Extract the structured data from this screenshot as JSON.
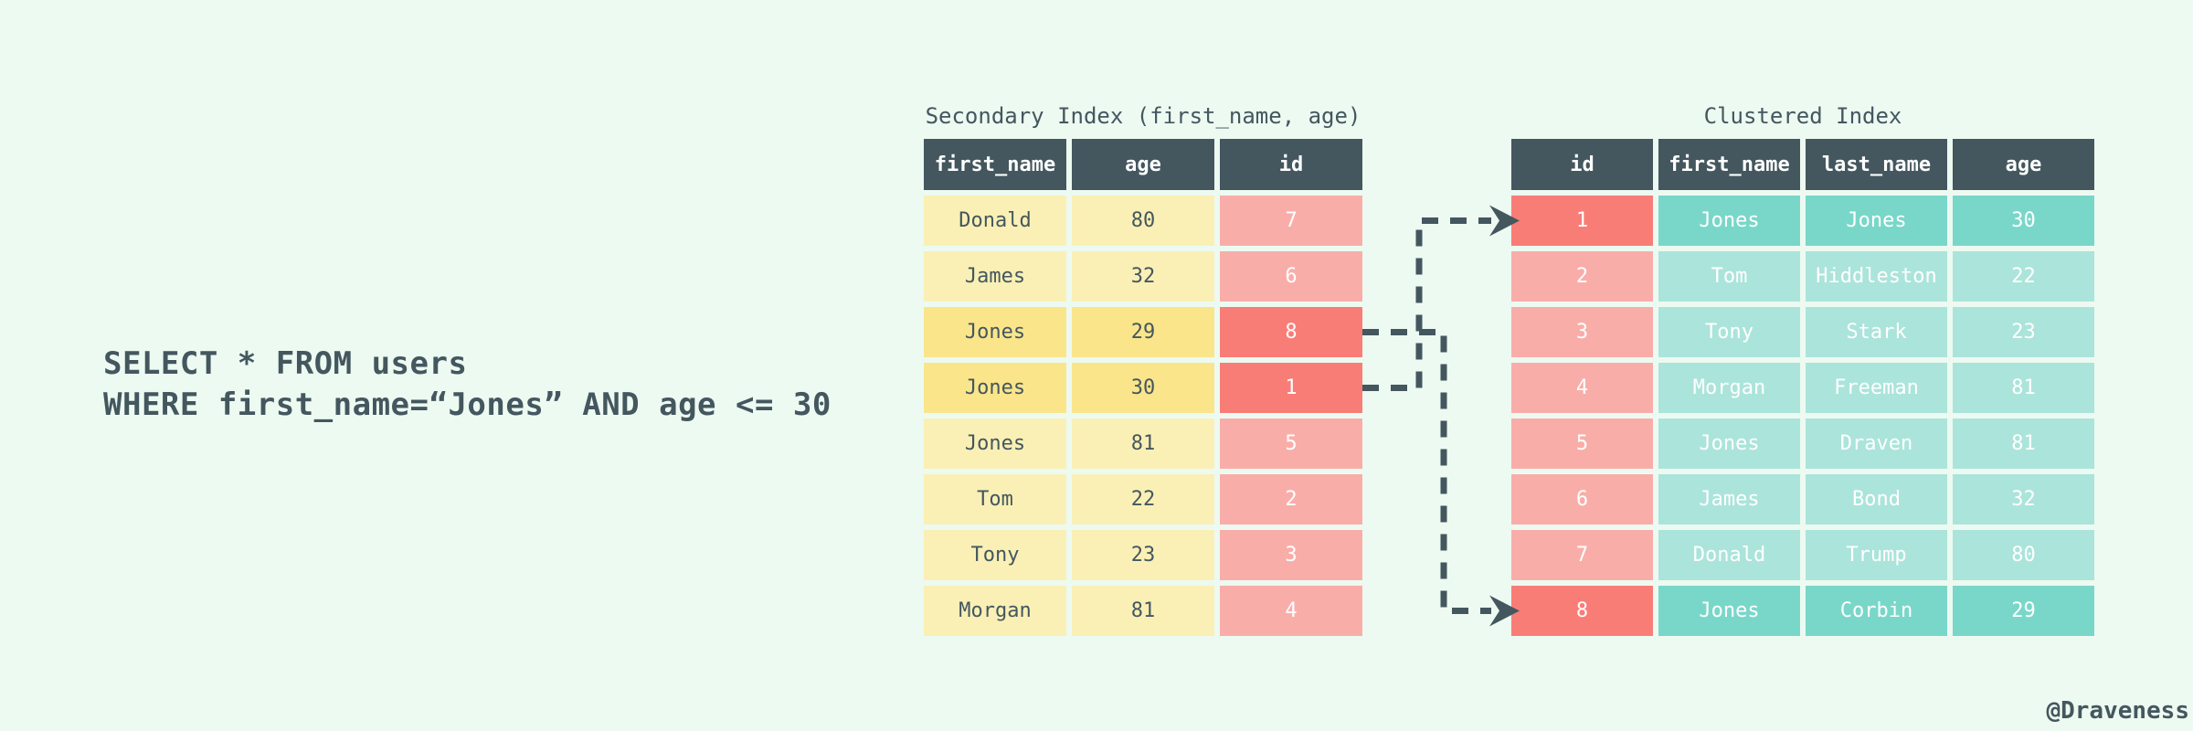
{
  "sql": {
    "line1": "SELECT * FROM users",
    "line2": "WHERE first_name=“Jones” AND age <= 30"
  },
  "secondary_index": {
    "title": "Secondary Index (first_name, age)",
    "columns": [
      "first_name",
      "age",
      "id"
    ],
    "rows": [
      {
        "cells": [
          "Donald",
          "80",
          "7"
        ],
        "highlight": false
      },
      {
        "cells": [
          "James",
          "32",
          "6"
        ],
        "highlight": false
      },
      {
        "cells": [
          "Jones",
          "29",
          "8"
        ],
        "highlight": true
      },
      {
        "cells": [
          "Jones",
          "30",
          "1"
        ],
        "highlight": true
      },
      {
        "cells": [
          "Jones",
          "81",
          "5"
        ],
        "highlight": false
      },
      {
        "cells": [
          "Tom",
          "22",
          "2"
        ],
        "highlight": false
      },
      {
        "cells": [
          "Tony",
          "23",
          "3"
        ],
        "highlight": false
      },
      {
        "cells": [
          "Morgan",
          "81",
          "4"
        ],
        "highlight": false
      }
    ]
  },
  "clustered_index": {
    "title": "Clustered Index",
    "columns": [
      "id",
      "first_name",
      "last_name",
      "age"
    ],
    "rows": [
      {
        "cells": [
          "1",
          "Jones",
          "Jones",
          "30"
        ],
        "highlight": true
      },
      {
        "cells": [
          "2",
          "Tom",
          "Hiddleston",
          "22"
        ],
        "highlight": false
      },
      {
        "cells": [
          "3",
          "Tony",
          "Stark",
          "23"
        ],
        "highlight": false
      },
      {
        "cells": [
          "4",
          "Morgan",
          "Freeman",
          "81"
        ],
        "highlight": false
      },
      {
        "cells": [
          "5",
          "Jones",
          "Draven",
          "81"
        ],
        "highlight": false
      },
      {
        "cells": [
          "6",
          "James",
          "Bond",
          "32"
        ],
        "highlight": false
      },
      {
        "cells": [
          "7",
          "Donald",
          "Trump",
          "80"
        ],
        "highlight": false
      },
      {
        "cells": [
          "8",
          "Jones",
          "Corbin",
          "29"
        ],
        "highlight": true
      }
    ]
  },
  "connectors": [
    {
      "from_table": "secondary_index",
      "from_row": 3,
      "from_id": "8",
      "to_table": "clustered_index",
      "to_row": 8
    },
    {
      "from_table": "secondary_index",
      "from_row": 4,
      "from_id": "1",
      "to_table": "clustered_index",
      "to_row": 1
    }
  ],
  "watermark": "@Draveness",
  "colors": {
    "background": "#edfaf1",
    "slate": "#44575f",
    "yellow_light": "#faf0b5",
    "yellow_highlight": "#fae58b",
    "pink_light": "#f9ada9",
    "red_highlight": "#f97d77",
    "teal_light": "#abe4db",
    "teal_highlight": "#79d7c9",
    "cell_text_light": "#ffffff"
  }
}
